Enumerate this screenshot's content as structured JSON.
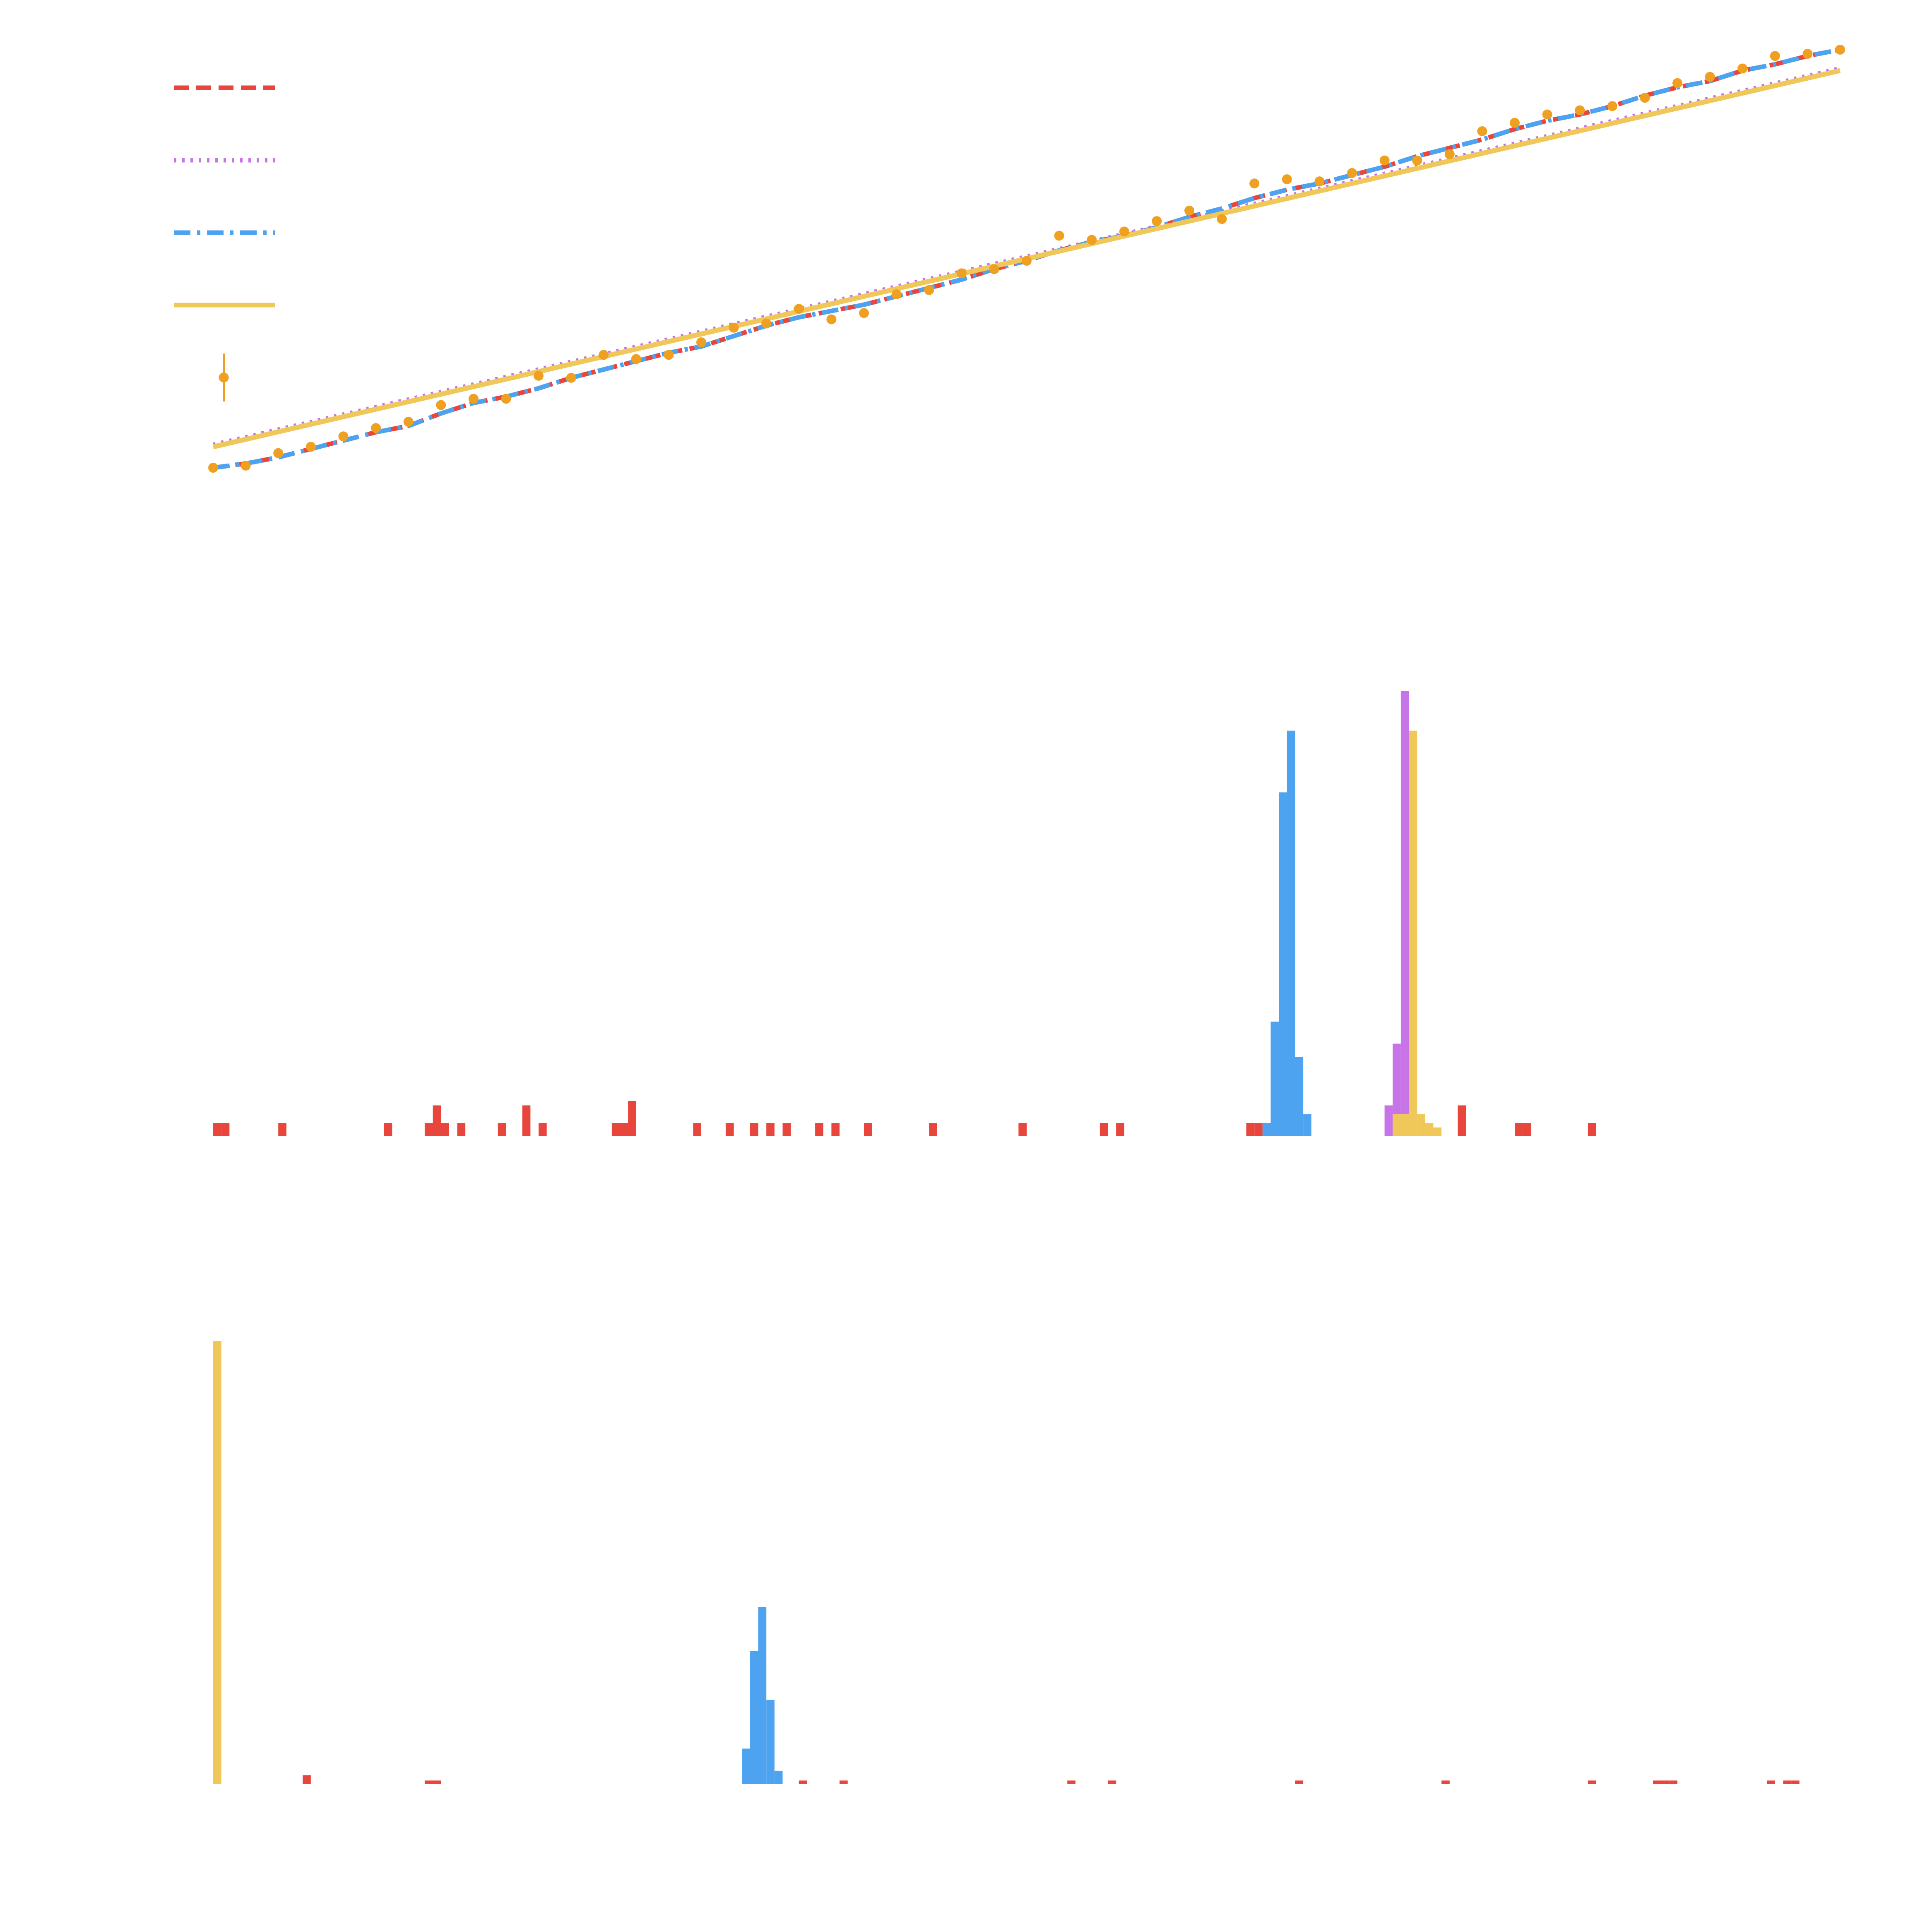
{
  "colors": {
    "red": "#e8453c",
    "purple": "#c774e8",
    "blue": "#4da3ef",
    "yellow": "#f0c85a",
    "orange": "#f0a020",
    "background": "#ffffff"
  },
  "chart_data": [
    {
      "type": "line",
      "grid": false,
      "legend_placement": "top-left",
      "xlim": [
        0,
        50
      ],
      "ylim": [
        0,
        1
      ],
      "legend": [
        {
          "key": "red",
          "style": "dashed",
          "label": ""
        },
        {
          "key": "purple",
          "style": "dotted",
          "label": ""
        },
        {
          "key": "blue",
          "style": "dash-dot",
          "label": ""
        },
        {
          "key": "yellow",
          "style": "solid",
          "label": ""
        },
        {
          "key": "orange",
          "style": "errorbar-points",
          "label": ""
        }
      ],
      "series": [
        {
          "key": "red",
          "style": "dashed",
          "x": [
            0,
            1,
            2,
            3,
            4,
            5,
            6,
            7,
            8,
            9,
            10,
            11,
            12,
            13,
            14,
            15,
            16,
            17,
            18,
            19,
            20,
            21,
            22,
            23,
            24,
            25,
            26,
            27,
            28,
            29,
            30,
            31,
            32,
            33,
            34,
            35,
            36,
            37,
            38,
            39,
            40,
            41,
            42,
            43,
            44,
            45,
            46,
            47,
            48,
            49,
            50
          ],
          "y": [
            0.0,
            0.01,
            0.025,
            0.045,
            0.065,
            0.085,
            0.1,
            0.13,
            0.155,
            0.17,
            0.19,
            0.215,
            0.235,
            0.255,
            0.275,
            0.29,
            0.315,
            0.34,
            0.36,
            0.375,
            0.39,
            0.41,
            0.43,
            0.45,
            0.475,
            0.495,
            0.52,
            0.54,
            0.555,
            0.575,
            0.6,
            0.62,
            0.645,
            0.665,
            0.68,
            0.7,
            0.72,
            0.745,
            0.765,
            0.785,
            0.81,
            0.83,
            0.845,
            0.865,
            0.89,
            0.91,
            0.925,
            0.95,
            0.965,
            0.985,
            1.0
          ]
        },
        {
          "key": "purple",
          "style": "dotted",
          "x": [
            0,
            50
          ],
          "y": [
            0.055,
            0.955
          ]
        },
        {
          "key": "blue",
          "style": "dash-dot",
          "x": [
            0,
            1,
            2,
            3,
            4,
            5,
            6,
            7,
            8,
            9,
            10,
            11,
            12,
            13,
            14,
            15,
            16,
            17,
            18,
            19,
            20,
            21,
            22,
            23,
            24,
            25,
            26,
            27,
            28,
            29,
            30,
            31,
            32,
            33,
            34,
            35,
            36,
            37,
            38,
            39,
            40,
            41,
            42,
            43,
            44,
            45,
            46,
            47,
            48,
            49,
            50
          ],
          "y": [
            0.0,
            0.01,
            0.025,
            0.045,
            0.065,
            0.085,
            0.1,
            0.13,
            0.155,
            0.17,
            0.19,
            0.215,
            0.235,
            0.255,
            0.275,
            0.29,
            0.315,
            0.34,
            0.36,
            0.375,
            0.39,
            0.41,
            0.43,
            0.45,
            0.475,
            0.495,
            0.52,
            0.54,
            0.555,
            0.575,
            0.6,
            0.62,
            0.645,
            0.665,
            0.68,
            0.7,
            0.72,
            0.745,
            0.765,
            0.785,
            0.81,
            0.83,
            0.845,
            0.865,
            0.89,
            0.91,
            0.925,
            0.95,
            0.965,
            0.985,
            1.0
          ]
        },
        {
          "key": "yellow",
          "style": "solid",
          "x": [
            0,
            50
          ],
          "y": [
            0.05,
            0.95
          ]
        },
        {
          "key": "orange",
          "style": "points",
          "x": [
            0,
            1,
            2,
            3,
            4,
            5,
            6,
            7,
            8,
            9,
            10,
            11,
            12,
            13,
            14,
            15,
            16,
            17,
            18,
            19,
            20,
            21,
            22,
            23,
            24,
            25,
            26,
            27,
            28,
            29,
            30,
            31,
            32,
            33,
            34,
            35,
            36,
            37,
            38,
            39,
            40,
            41,
            42,
            43,
            44,
            45,
            46,
            47,
            48,
            49,
            50
          ],
          "y": [
            0.0,
            0.005,
            0.035,
            0.05,
            0.075,
            0.095,
            0.11,
            0.15,
            0.165,
            0.165,
            0.22,
            0.215,
            0.27,
            0.26,
            0.27,
            0.3,
            0.335,
            0.345,
            0.38,
            0.355,
            0.37,
            0.415,
            0.425,
            0.465,
            0.475,
            0.495,
            0.555,
            0.545,
            0.565,
            0.59,
            0.615,
            0.595,
            0.68,
            0.69,
            0.685,
            0.705,
            0.735,
            0.735,
            0.75,
            0.805,
            0.825,
            0.845,
            0.855,
            0.865,
            0.885,
            0.92,
            0.935,
            0.955,
            0.985,
            0.99,
            1.0
          ]
        }
      ]
    },
    {
      "type": "histogram",
      "grid": false,
      "xlim": [
        0,
        100
      ],
      "ylim": [
        0,
        100
      ],
      "bin_width": 0.5,
      "series": [
        {
          "key": "red",
          "bins": [
            [
              0.0,
              3
            ],
            [
              0.5,
              3
            ],
            [
              4.0,
              3
            ],
            [
              10.5,
              3
            ],
            [
              13.0,
              3
            ],
            [
              13.5,
              3
            ],
            [
              13.5,
              7
            ],
            [
              14.0,
              3
            ],
            [
              15.0,
              3
            ],
            [
              17.5,
              3
            ],
            [
              19.0,
              7
            ],
            [
              20.0,
              3
            ],
            [
              24.5,
              3
            ],
            [
              25.0,
              3
            ],
            [
              25.5,
              3
            ],
            [
              25.5,
              8
            ],
            [
              29.5,
              3
            ],
            [
              31.5,
              3
            ],
            [
              33.0,
              3
            ],
            [
              34.0,
              3
            ],
            [
              35.0,
              3
            ],
            [
              37.0,
              3
            ],
            [
              38.0,
              3
            ],
            [
              40.0,
              3
            ],
            [
              44.0,
              3
            ],
            [
              49.5,
              3
            ],
            [
              54.5,
              3
            ],
            [
              55.5,
              3
            ],
            [
              63.5,
              3
            ],
            [
              64.0,
              3
            ],
            [
              76.5,
              7
            ],
            [
              80.0,
              3
            ],
            [
              80.5,
              3
            ],
            [
              84.5,
              3
            ]
          ]
        },
        {
          "key": "blue",
          "bins": [
            [
              64.5,
              3
            ],
            [
              65.0,
              26
            ],
            [
              65.5,
              78
            ],
            [
              66.0,
              92
            ],
            [
              66.5,
              18
            ],
            [
              67.0,
              5
            ]
          ]
        },
        {
          "key": "purple",
          "bins": [
            [
              72.0,
              7
            ],
            [
              72.5,
              21
            ],
            [
              73.0,
              101
            ]
          ]
        },
        {
          "key": "yellow",
          "bins": [
            [
              72.5,
              5
            ],
            [
              73.0,
              5
            ],
            [
              73.5,
              92
            ],
            [
              74.0,
              5
            ],
            [
              74.5,
              3
            ],
            [
              75.0,
              2
            ]
          ]
        }
      ]
    },
    {
      "type": "histogram",
      "grid": false,
      "xlim": [
        0,
        100
      ],
      "ylim": [
        0,
        100
      ],
      "bin_width": 0.5,
      "series": [
        {
          "key": "yellow",
          "bins": [
            [
              0.0,
              100
            ]
          ]
        },
        {
          "key": "red",
          "bins": [
            [
              5.5,
              2
            ],
            [
              13.0,
              0.8
            ],
            [
              13.5,
              0.8
            ],
            [
              36.0,
              0.8
            ],
            [
              38.5,
              0.8
            ],
            [
              52.5,
              0.8
            ],
            [
              55.0,
              0.8
            ],
            [
              66.5,
              0.8
            ],
            [
              75.5,
              0.8
            ],
            [
              84.5,
              0.8
            ],
            [
              88.5,
              0.8
            ],
            [
              89.5,
              0.8
            ],
            [
              89.0,
              0.8
            ],
            [
              95.5,
              0.8
            ],
            [
              96.5,
              0.8
            ],
            [
              97.0,
              0.8
            ]
          ]
        },
        {
          "key": "blue",
          "bins": [
            [
              32.5,
              8
            ],
            [
              33.0,
              30
            ],
            [
              33.5,
              40
            ],
            [
              34.0,
              19
            ],
            [
              34.5,
              3
            ]
          ]
        }
      ]
    }
  ]
}
